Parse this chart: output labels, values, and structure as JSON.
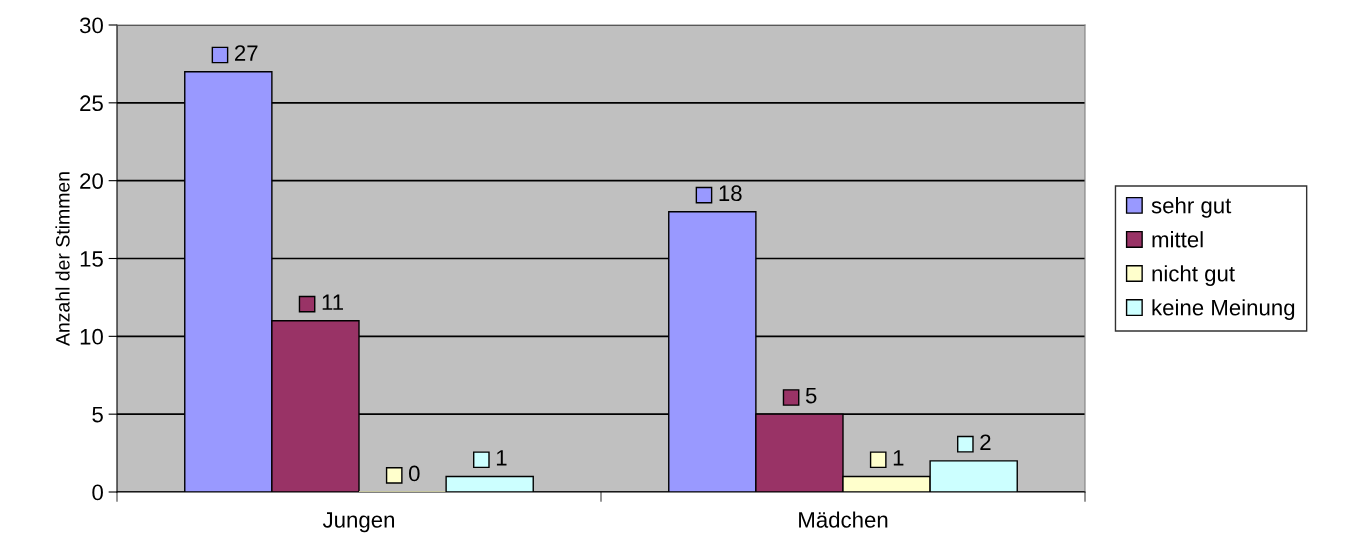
{
  "chart_data": {
    "type": "bar",
    "ylabel": "Anzahl der Stimmen",
    "categories": [
      "Jungen",
      "Mädchen"
    ],
    "series": [
      {
        "name": "sehr gut",
        "color": "#9999ff",
        "values": [
          27,
          18
        ]
      },
      {
        "name": "mittel",
        "color": "#993366",
        "values": [
          11,
          5
        ]
      },
      {
        "name": "nicht gut",
        "color": "#ffffcc",
        "values": [
          0,
          1
        ]
      },
      {
        "name": "keine Meinung",
        "color": "#ccffff",
        "values": [
          1,
          2
        ]
      }
    ],
    "ylim": [
      0,
      30
    ],
    "yticks": [
      0,
      5,
      10,
      15,
      20,
      25,
      30
    ],
    "grid": "y",
    "legend": "right",
    "data_labels": true
  }
}
